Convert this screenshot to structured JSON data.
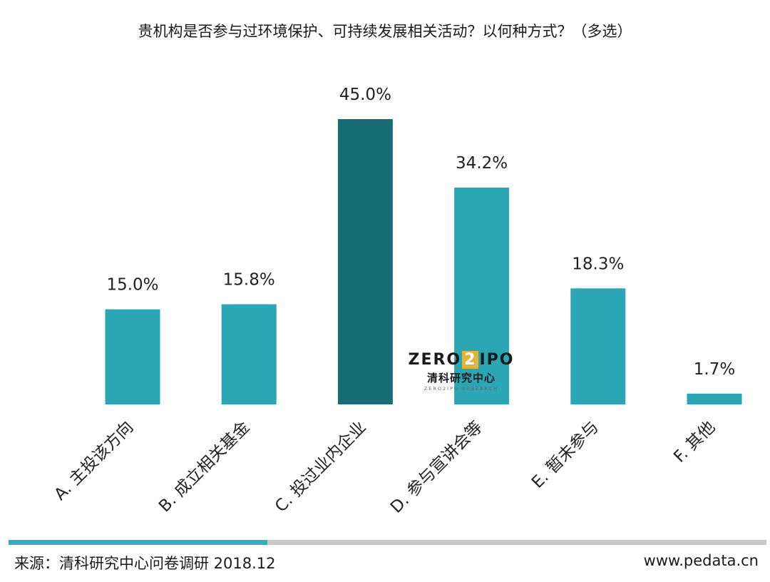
{
  "title": "贵机构是否参与过环境保护、可持续发展相关活动？以何种方式？（多选）",
  "chart_data": {
    "type": "bar",
    "categories": [
      "A. 主投该方向",
      "B. 成立相关基金",
      "C. 投过业内企业",
      "D. 参与宣讲会等",
      "E. 暂未参与",
      "F. 其他"
    ],
    "values": [
      15.0,
      15.8,
      45.0,
      34.2,
      18.3,
      1.7
    ],
    "value_labels": [
      "15.0%",
      "15.8%",
      "45.0%",
      "34.2%",
      "18.3%",
      "1.7%"
    ],
    "highlight_index": 2,
    "colors": {
      "default": "#2ba6b4",
      "highlight": "#176c75"
    },
    "ylim": [
      0,
      45
    ],
    "grid": false
  },
  "logo": {
    "brand_left": "ZERO",
    "brand_two": "2",
    "brand_right": "IPO",
    "cn": "清科研究中心",
    "en": "ZERO2IPO RESEARCH"
  },
  "footer": {
    "source": "来源：清科研究中心问卷调研 2018.12",
    "website": "www.pedata.cn",
    "accent_color": "#35b0bb",
    "bar_color": "#c9c9c9"
  }
}
